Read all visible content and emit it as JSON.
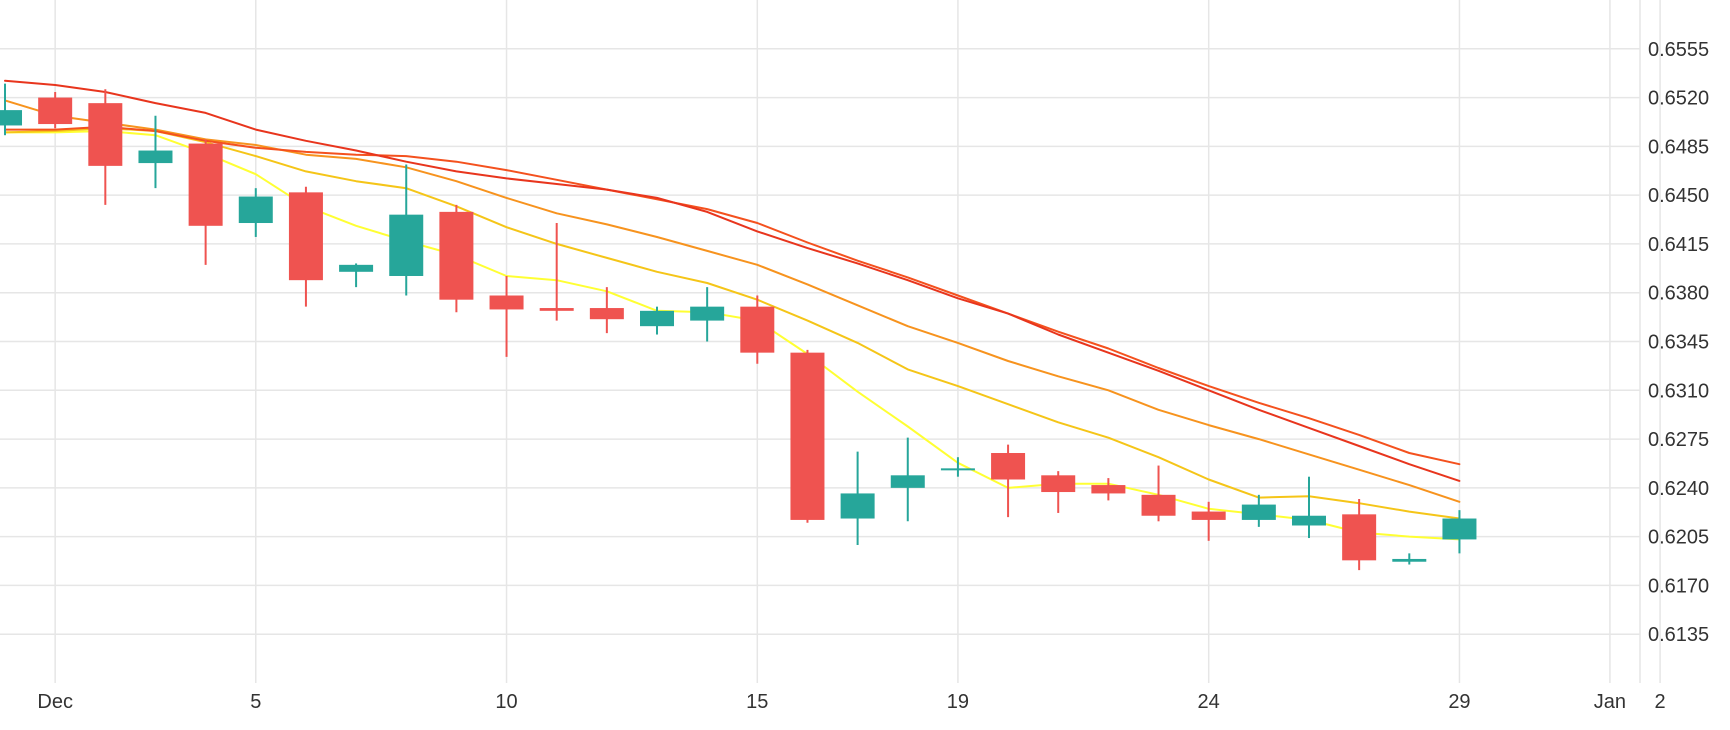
{
  "chart_data": {
    "type": "candlestick",
    "title": "",
    "xlabel": "",
    "ylabel": "",
    "grid": true,
    "legend": "none",
    "y_axis_side": "right",
    "ylim": [
      0.61,
      0.659
    ],
    "y_ticks": [
      0.6135,
      0.617,
      0.6205,
      0.624,
      0.6275,
      0.631,
      0.6345,
      0.638,
      0.6415,
      0.645,
      0.6485,
      0.652,
      0.6555
    ],
    "y_tick_labels": [
      "0.6135",
      "0.6170",
      "0.6205",
      "0.6240",
      "0.6275",
      "0.6310",
      "0.6345",
      "0.6380",
      "0.6415",
      "0.6450",
      "0.6485",
      "0.6520",
      "0.6555"
    ],
    "x_domain": [
      -1.1,
      31.6
    ],
    "x_ticks": [
      {
        "value": 0,
        "label": "Dec"
      },
      {
        "value": 4,
        "label": "5"
      },
      {
        "value": 9,
        "label": "10"
      },
      {
        "value": 14,
        "label": "15"
      },
      {
        "value": 18,
        "label": "19"
      },
      {
        "value": 23,
        "label": "24"
      },
      {
        "value": 28,
        "label": "29"
      },
      {
        "value": 31,
        "label": "Jan"
      },
      {
        "value": 32,
        "label": "2"
      }
    ],
    "colors": {
      "up": "#26a69a",
      "down": "#ef5350",
      "grid": "#e6e6e6",
      "ma": [
        "#ffff33",
        "#f5c518",
        "#f7931e",
        "#f4511e",
        "#e8351d"
      ]
    },
    "candles": [
      {
        "t": -1,
        "open": 0.65,
        "high": 0.653,
        "low": 0.6493,
        "close": 0.6511
      },
      {
        "t": 0,
        "open": 0.652,
        "high": 0.6524,
        "low": 0.6498,
        "close": 0.6501
      },
      {
        "t": 1,
        "open": 0.6516,
        "high": 0.6526,
        "low": 0.6443,
        "close": 0.6471
      },
      {
        "t": 2,
        "open": 0.6473,
        "high": 0.6507,
        "low": 0.6455,
        "close": 0.6482
      },
      {
        "t": 3,
        "open": 0.6487,
        "high": 0.649,
        "low": 0.64,
        "close": 0.6428
      },
      {
        "t": 4,
        "open": 0.643,
        "high": 0.6455,
        "low": 0.642,
        "close": 0.6449
      },
      {
        "t": 5,
        "open": 0.6452,
        "high": 0.6456,
        "low": 0.637,
        "close": 0.6389
      },
      {
        "t": 6,
        "open": 0.6395,
        "high": 0.6401,
        "low": 0.6384,
        "close": 0.64
      },
      {
        "t": 7,
        "open": 0.6392,
        "high": 0.6472,
        "low": 0.6378,
        "close": 0.6436
      },
      {
        "t": 8,
        "open": 0.6438,
        "high": 0.6443,
        "low": 0.6366,
        "close": 0.6375
      },
      {
        "t": 9,
        "open": 0.6378,
        "high": 0.6392,
        "low": 0.6334,
        "close": 0.6368
      },
      {
        "t": 10,
        "open": 0.6369,
        "high": 0.643,
        "low": 0.636,
        "close": 0.6367
      },
      {
        "t": 11,
        "open": 0.6369,
        "high": 0.6384,
        "low": 0.6351,
        "close": 0.6361
      },
      {
        "t": 12,
        "open": 0.6356,
        "high": 0.637,
        "low": 0.635,
        "close": 0.6367
      },
      {
        "t": 13,
        "open": 0.636,
        "high": 0.6384,
        "low": 0.6345,
        "close": 0.637
      },
      {
        "t": 14,
        "open": 0.637,
        "high": 0.6378,
        "low": 0.6329,
        "close": 0.6337
      },
      {
        "t": 15,
        "open": 0.6337,
        "high": 0.6339,
        "low": 0.6215,
        "close": 0.6217
      },
      {
        "t": 16,
        "open": 0.6218,
        "high": 0.6266,
        "low": 0.6199,
        "close": 0.6236
      },
      {
        "t": 17,
        "open": 0.624,
        "high": 0.6276,
        "low": 0.6216,
        "close": 0.6249
      },
      {
        "t": 18,
        "open": 0.6253,
        "high": 0.6262,
        "low": 0.6248,
        "close": 0.6254
      },
      {
        "t": 19,
        "open": 0.6265,
        "high": 0.6271,
        "low": 0.6219,
        "close": 0.6246
      },
      {
        "t": 20,
        "open": 0.6249,
        "high": 0.6252,
        "low": 0.6222,
        "close": 0.6237
      },
      {
        "t": 21,
        "open": 0.6242,
        "high": 0.6247,
        "low": 0.6231,
        "close": 0.6236
      },
      {
        "t": 22,
        "open": 0.6235,
        "high": 0.6256,
        "low": 0.6216,
        "close": 0.622
      },
      {
        "t": 23,
        "open": 0.6223,
        "high": 0.623,
        "low": 0.6202,
        "close": 0.6217
      },
      {
        "t": 24,
        "open": 0.6217,
        "high": 0.6235,
        "low": 0.6212,
        "close": 0.6228
      },
      {
        "t": 25,
        "open": 0.6213,
        "high": 0.6248,
        "low": 0.6204,
        "close": 0.622
      },
      {
        "t": 26,
        "open": 0.6221,
        "high": 0.6232,
        "low": 0.6181,
        "close": 0.6188
      },
      {
        "t": 27,
        "open": 0.6187,
        "high": 0.6193,
        "low": 0.6185,
        "close": 0.6189
      },
      {
        "t": 28,
        "open": 0.6203,
        "high": 0.6224,
        "low": 0.6193,
        "close": 0.6218
      }
    ],
    "moving_averages": [
      {
        "x": [
          -1,
          0,
          1,
          2,
          3,
          4,
          5,
          6,
          7,
          8,
          9,
          10,
          11,
          12,
          13,
          14,
          15,
          16,
          17,
          18,
          19,
          20,
          21,
          22,
          23,
          24,
          25,
          26,
          27,
          28
        ],
        "y": [
          0.6495,
          0.6495,
          0.6496,
          0.6493,
          0.648,
          0.6465,
          0.6442,
          0.6428,
          0.6417,
          0.6407,
          0.6392,
          0.6389,
          0.6381,
          0.6367,
          0.6366,
          0.636,
          0.6336,
          0.6309,
          0.6284,
          0.6258,
          0.624,
          0.6243,
          0.6243,
          0.6235,
          0.6225,
          0.6221,
          0.6217,
          0.6208,
          0.6205,
          0.6203
        ]
      },
      {
        "x": [
          -1,
          0,
          1,
          2,
          3,
          4,
          5,
          6,
          7,
          8,
          9,
          10,
          11,
          12,
          13,
          14,
          15,
          16,
          17,
          18,
          19,
          20,
          21,
          22,
          23,
          24,
          25,
          26,
          27,
          28
        ],
        "y": [
          0.6495,
          0.6496,
          0.6498,
          0.6496,
          0.6488,
          0.6478,
          0.6467,
          0.646,
          0.6455,
          0.6442,
          0.6427,
          0.6415,
          0.6405,
          0.6395,
          0.6387,
          0.6375,
          0.636,
          0.6344,
          0.6325,
          0.6313,
          0.63,
          0.6287,
          0.6276,
          0.6262,
          0.6246,
          0.6233,
          0.6234,
          0.6229,
          0.6223,
          0.6218
        ]
      },
      {
        "x": [
          -1,
          0,
          1,
          2,
          3,
          4,
          5,
          6,
          7,
          8,
          9,
          10,
          11,
          12,
          13,
          14,
          15,
          16,
          17,
          18,
          19,
          20,
          21,
          22,
          23,
          24,
          25,
          26,
          27,
          28
        ],
        "y": [
          0.6518,
          0.6507,
          0.6502,
          0.6497,
          0.649,
          0.6486,
          0.6479,
          0.6476,
          0.647,
          0.646,
          0.6448,
          0.6437,
          0.6429,
          0.642,
          0.641,
          0.64,
          0.6386,
          0.6371,
          0.6356,
          0.6344,
          0.6331,
          0.632,
          0.631,
          0.6296,
          0.6285,
          0.6275,
          0.6264,
          0.6253,
          0.6242,
          0.623
        ]
      },
      {
        "x": [
          -1,
          0,
          1,
          2,
          3,
          4,
          5,
          6,
          7,
          8,
          9,
          10,
          11,
          12,
          13,
          14,
          15,
          16,
          17,
          18,
          19,
          20,
          21,
          22,
          23,
          24,
          25,
          26,
          27,
          28
        ],
        "y": [
          0.6497,
          0.6497,
          0.6499,
          0.6496,
          0.6489,
          0.6484,
          0.6481,
          0.6479,
          0.6478,
          0.6474,
          0.6468,
          0.6461,
          0.6454,
          0.6447,
          0.644,
          0.643,
          0.6416,
          0.6403,
          0.6391,
          0.6378,
          0.6365,
          0.6352,
          0.634,
          0.6326,
          0.6313,
          0.6301,
          0.629,
          0.6278,
          0.6265,
          0.6257
        ]
      },
      {
        "x": [
          -1,
          0,
          1,
          2,
          3,
          4,
          5,
          6,
          7,
          8,
          9,
          10,
          11,
          12,
          13,
          14,
          15,
          16,
          17,
          18,
          19,
          20,
          21,
          22,
          23,
          24,
          25,
          26,
          27,
          28
        ],
        "y": [
          0.6532,
          0.6529,
          0.6524,
          0.6516,
          0.6509,
          0.6497,
          0.6489,
          0.6482,
          0.6474,
          0.6467,
          0.6462,
          0.6458,
          0.6454,
          0.6448,
          0.6438,
          0.6424,
          0.6412,
          0.6401,
          0.6389,
          0.6376,
          0.6365,
          0.635,
          0.6337,
          0.6324,
          0.631,
          0.6296,
          0.6283,
          0.627,
          0.6257,
          0.6245
        ]
      }
    ]
  }
}
